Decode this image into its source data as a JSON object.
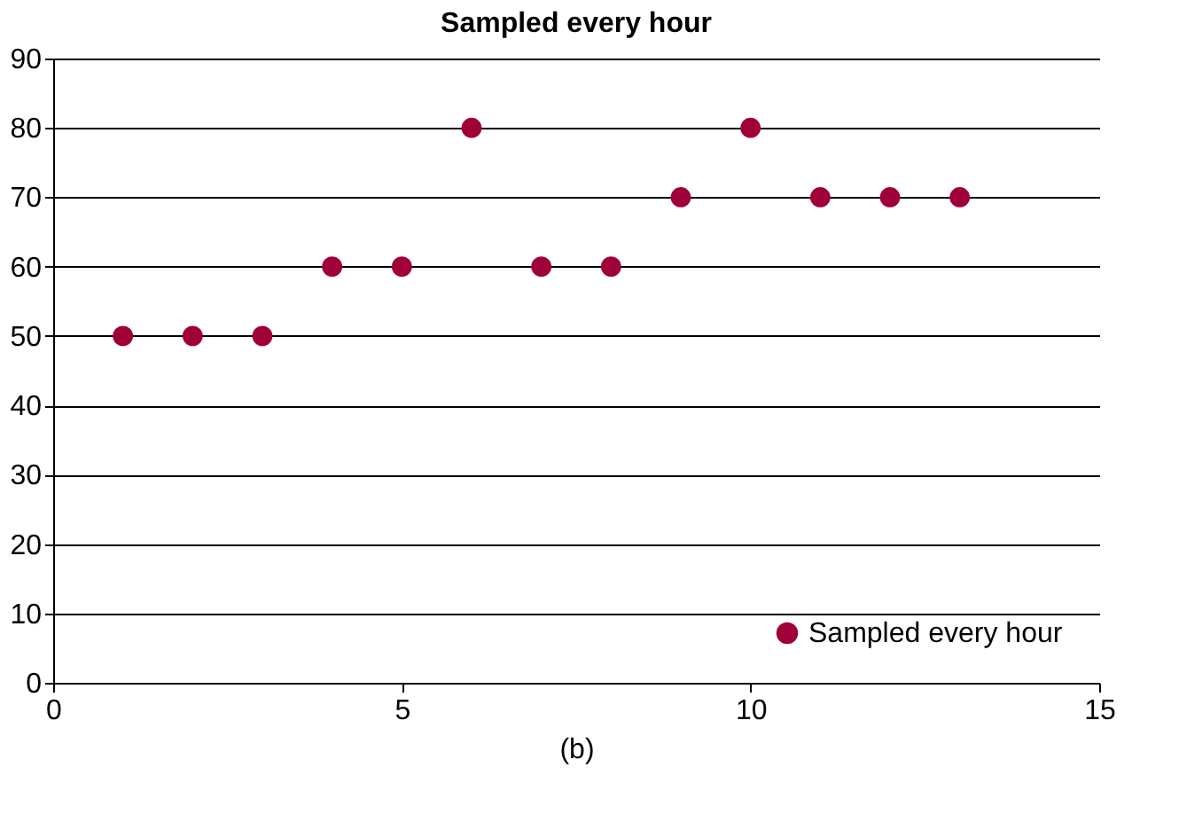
{
  "chart_data": {
    "type": "scatter",
    "title": "Sampled every hour",
    "x": [
      1,
      2,
      3,
      4,
      5,
      6,
      7,
      8,
      9,
      10,
      11,
      12,
      13
    ],
    "series": [
      {
        "name": "Sampled every hour",
        "color": "#a0003a",
        "values": [
          50,
          50,
          50,
          60,
          60,
          80,
          60,
          60,
          70,
          80,
          70,
          70,
          70
        ]
      }
    ],
    "xlim": [
      0,
      15
    ],
    "xticks": [
      0,
      5,
      10,
      15
    ],
    "ylim": [
      0,
      90
    ],
    "yticks": [
      0,
      10,
      20,
      30,
      40,
      50,
      60,
      70,
      80,
      90
    ],
    "grid": "y",
    "legend": "bottom right",
    "marker": "circle",
    "annotations": [
      "(b)"
    ]
  }
}
